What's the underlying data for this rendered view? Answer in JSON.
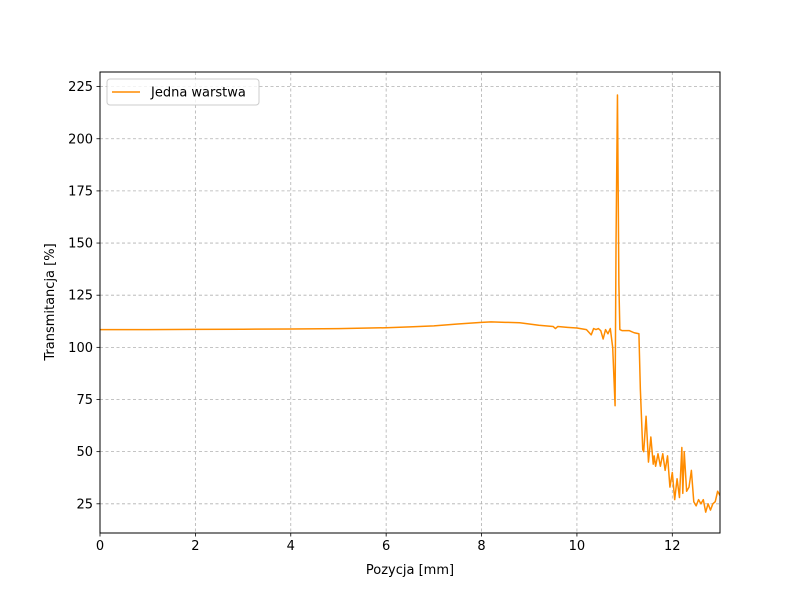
{
  "chart_data": {
    "type": "line",
    "xlabel": "Pozycja [mm]",
    "ylabel": "Transmitancja [%]",
    "xlim": [
      0,
      13
    ],
    "ylim": [
      11,
      232
    ],
    "xticks": [
      0,
      2,
      4,
      6,
      8,
      10,
      12
    ],
    "yticks": [
      25,
      50,
      75,
      100,
      125,
      150,
      175,
      200,
      225
    ],
    "grid": true,
    "grid_style": "dashed",
    "legend_position": "top-left",
    "series": [
      {
        "name": "Jedna warstwa",
        "color": "#ff8c00",
        "x": [
          0,
          1,
          2,
          3,
          4,
          5,
          6,
          6.5,
          7,
          7.5,
          8,
          8.2,
          8.5,
          8.8,
          9,
          9.2,
          9.5,
          9.55,
          9.6,
          9.8,
          10,
          10.2,
          10.3,
          10.35,
          10.4,
          10.45,
          10.5,
          10.55,
          10.6,
          10.65,
          10.7,
          10.75,
          10.8,
          10.82,
          10.85,
          10.88,
          10.9,
          10.95,
          11.0,
          11.1,
          11.2,
          11.3,
          11.33,
          11.38,
          11.4,
          11.45,
          11.5,
          11.55,
          11.6,
          11.62,
          11.65,
          11.7,
          11.75,
          11.8,
          11.85,
          11.9,
          11.95,
          12.0,
          12.05,
          12.1,
          12.15,
          12.2,
          12.22,
          12.25,
          12.3,
          12.35,
          12.4,
          12.45,
          12.5,
          12.55,
          12.6,
          12.65,
          12.7,
          12.75,
          12.8,
          12.85,
          12.9,
          12.95,
          13.0
        ],
        "y": [
          108.5,
          108.5,
          108.6,
          108.7,
          108.8,
          109.0,
          109.4,
          109.8,
          110.3,
          111.2,
          112.0,
          112.2,
          112.0,
          111.8,
          111.2,
          110.6,
          110.0,
          109.0,
          110.0,
          109.6,
          109.3,
          108.5,
          106.0,
          109.0,
          108.5,
          109.0,
          108.0,
          104.0,
          108.5,
          106.5,
          109.0,
          100.0,
          72.0,
          150.0,
          221.0,
          130.0,
          108.5,
          108.0,
          108.0,
          108.0,
          107.0,
          106.5,
          80.0,
          51.0,
          50.0,
          67.0,
          45.0,
          57.0,
          44.0,
          48.0,
          43.0,
          49.0,
          43.0,
          49.0,
          41.0,
          48.0,
          33.0,
          40.0,
          27.0,
          37.0,
          28.0,
          52.0,
          30.0,
          50.0,
          31.0,
          33.0,
          41.0,
          26.0,
          24.0,
          27.0,
          25.0,
          27.0,
          21.0,
          25.0,
          22.0,
          25.0,
          26.0,
          31.0,
          29.0
        ]
      }
    ]
  }
}
